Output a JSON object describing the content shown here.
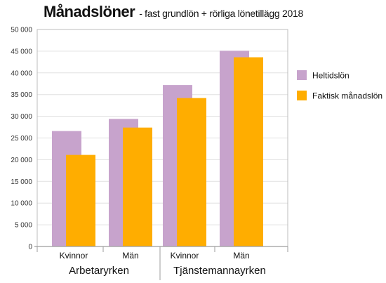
{
  "chart_data": {
    "type": "bar",
    "title": "Månadslöner",
    "subtitle": "- fast grundlön + rörliga lönetillägg 2018",
    "groups": [
      "Arbetaryrken",
      "Tjänstemannayrken"
    ],
    "categories": [
      "Kvinnor",
      "Män",
      "Kvinnor",
      "Män"
    ],
    "category_group_index": [
      0,
      0,
      1,
      1
    ],
    "series": [
      {
        "name": "Heltidslön",
        "color": "#c7a3cc",
        "values": [
          26600,
          29400,
          37200,
          45100
        ]
      },
      {
        "name": "Faktisk månadslön",
        "color": "#ffad00",
        "values": [
          21100,
          27400,
          34200,
          43600
        ]
      }
    ],
    "ylim": [
      0,
      50000
    ],
    "yticks": [
      0,
      5000,
      10000,
      15000,
      20000,
      25000,
      30000,
      35000,
      40000,
      45000,
      50000
    ],
    "ytick_labels": [
      "0",
      "5 000",
      "10 000",
      "15 000",
      "20 000",
      "25 000",
      "30 000",
      "35 000",
      "40 000",
      "45 000",
      "50 000"
    ],
    "grid": true,
    "legend_position": "right",
    "xlabel": "",
    "ylabel": ""
  }
}
